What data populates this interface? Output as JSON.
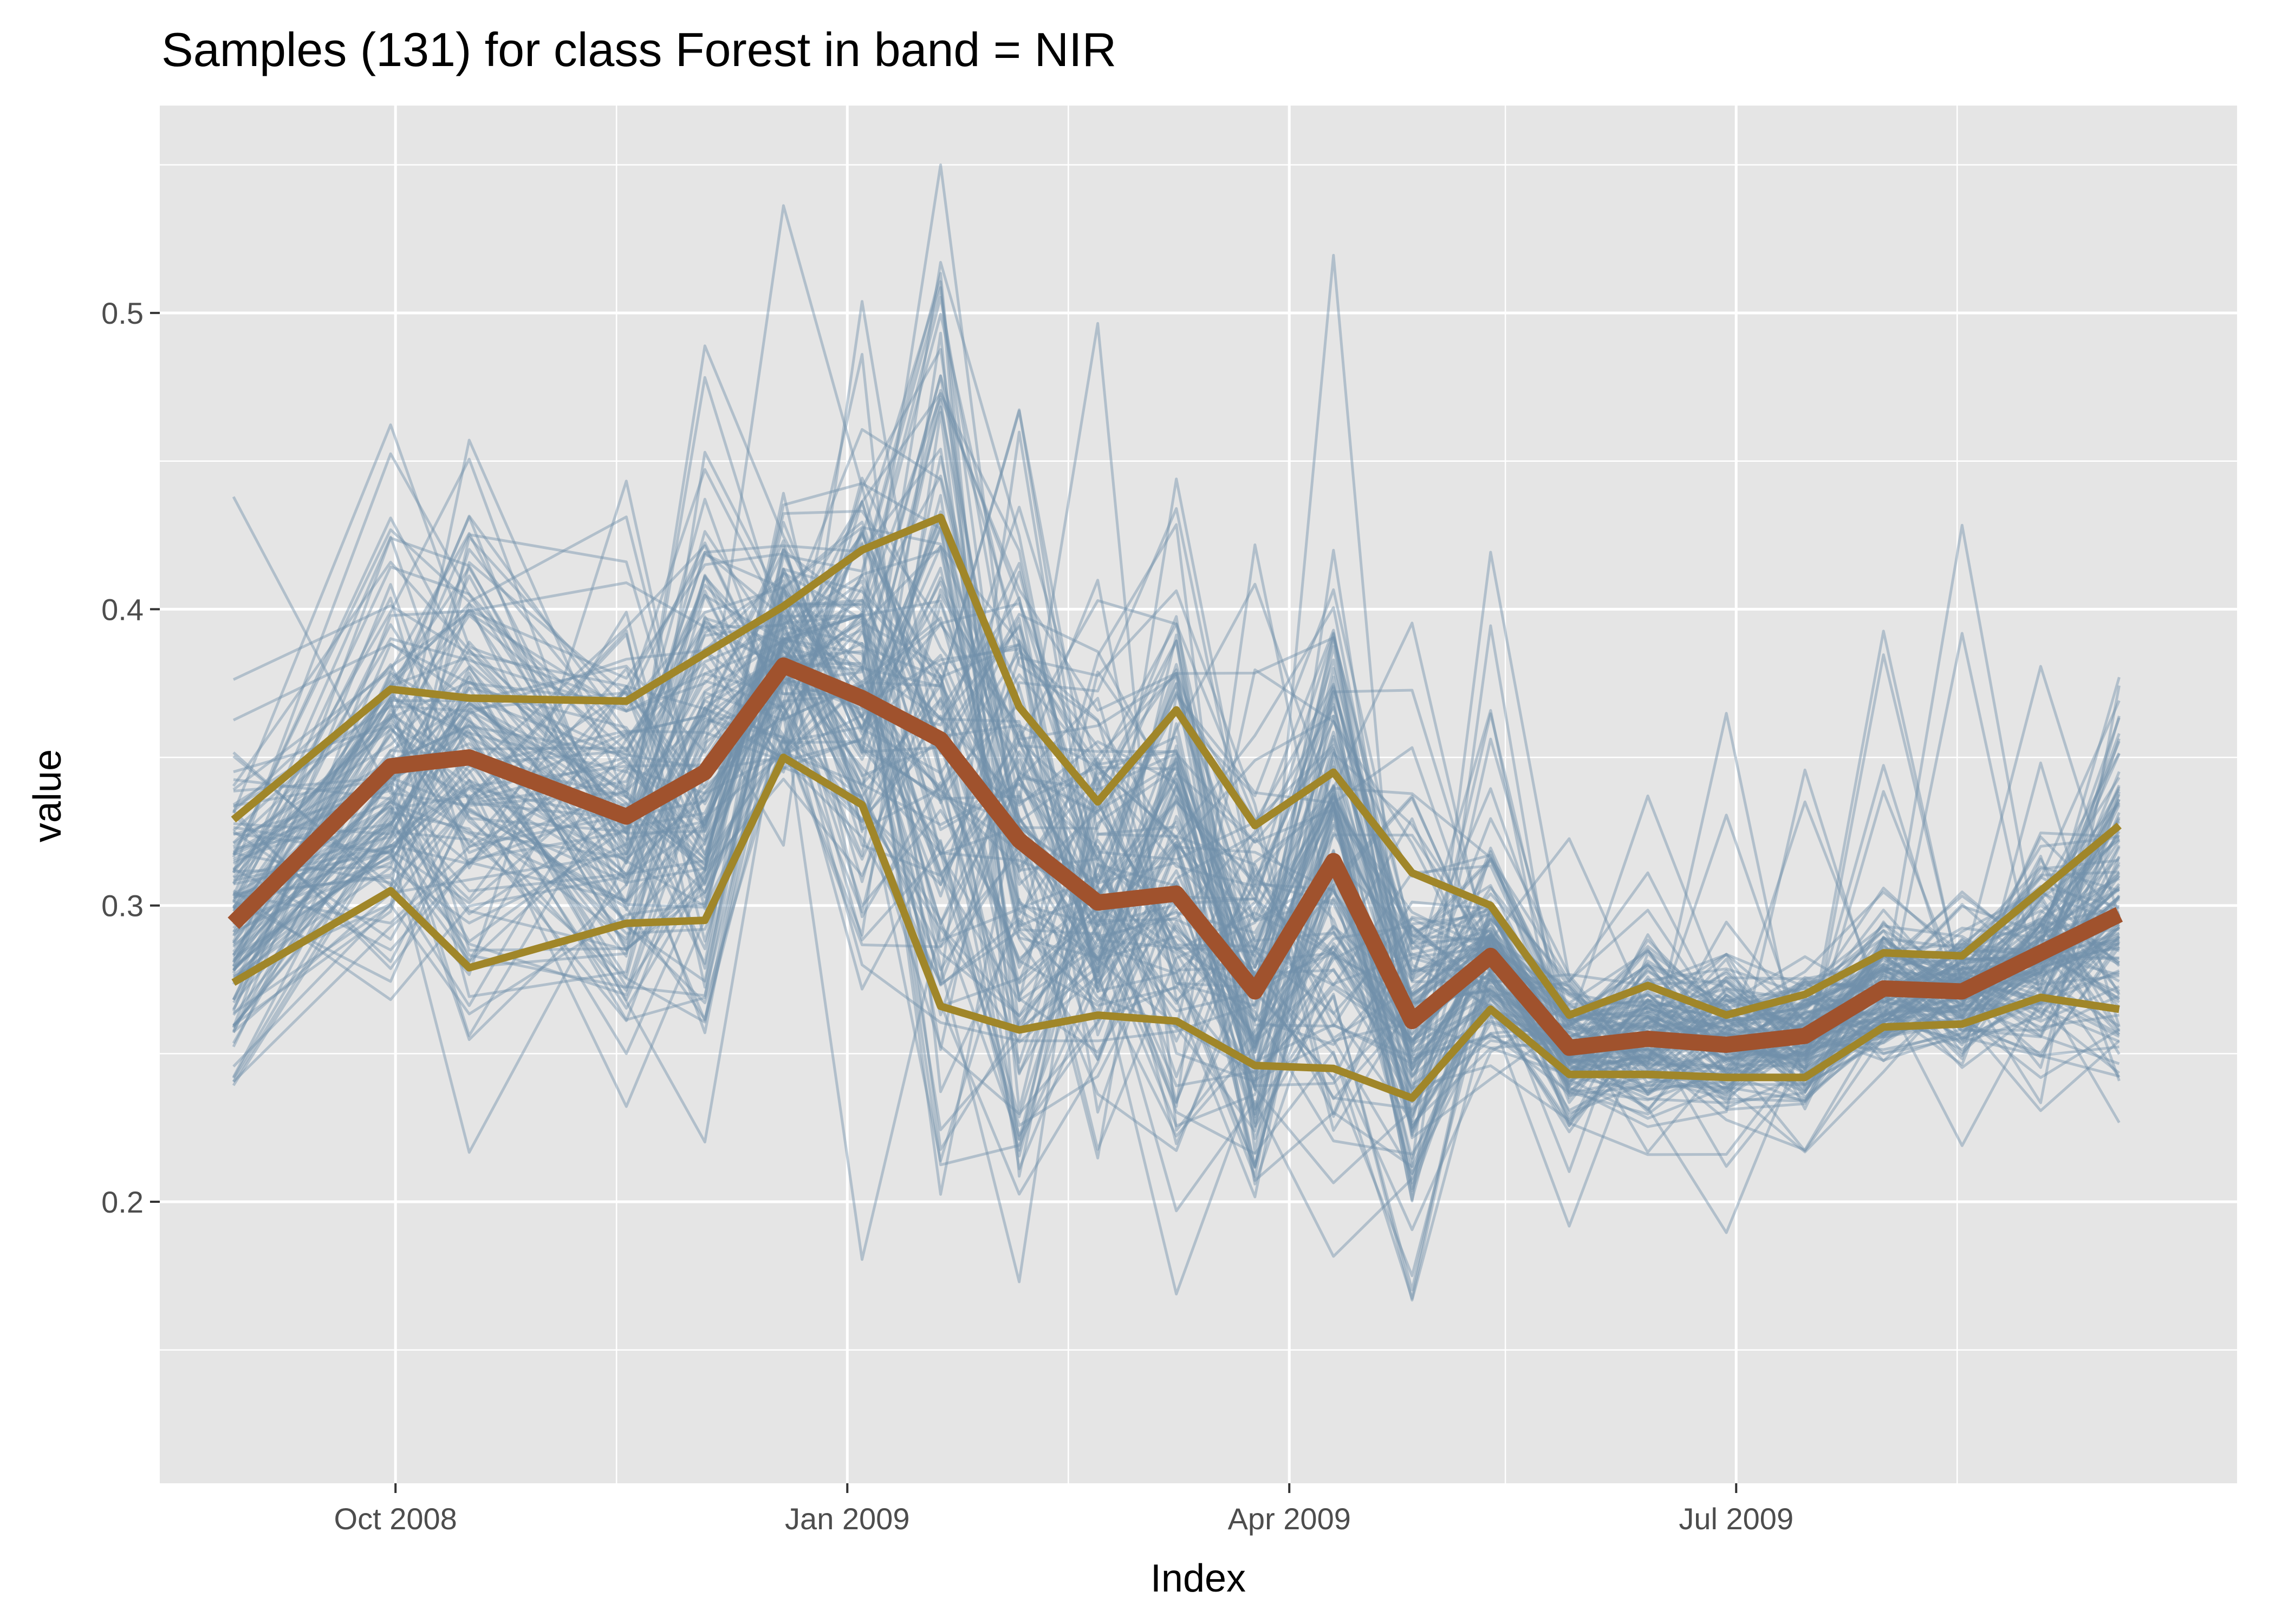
{
  "chart_data": {
    "type": "line",
    "title": "Samples (131) for class Forest in band = NIR",
    "xlabel": "Index",
    "ylabel": "value",
    "x_axis": {
      "kind": "date",
      "range": [
        "2008-08-14",
        "2009-10-11"
      ],
      "ticks": [
        {
          "date": "2008-10-01",
          "label": "Oct 2008"
        },
        {
          "date": "2009-01-01",
          "label": "Jan 2009"
        },
        {
          "date": "2009-04-01",
          "label": "Apr 2009"
        },
        {
          "date": "2009-07-01",
          "label": "Jul 2009"
        }
      ],
      "minor_ticks": [
        "2008-11-15",
        "2009-02-15",
        "2009-05-15",
        "2009-08-15"
      ]
    },
    "y_axis": {
      "range": [
        0.105,
        0.57
      ],
      "ticks": [
        0.2,
        0.3,
        0.4,
        0.5
      ],
      "tick_labels": [
        "0.2",
        "0.3",
        "0.4",
        "0.5"
      ],
      "minor_ticks": [
        0.15,
        0.25,
        0.35,
        0.45,
        0.55
      ]
    },
    "grid": true,
    "legend": "none",
    "dates": [
      "2008-08-29",
      "2008-09-30",
      "2008-10-16",
      "2008-11-17",
      "2008-12-03",
      "2008-12-19",
      "2009-01-04",
      "2009-01-20",
      "2009-02-05",
      "2009-02-21",
      "2009-03-09",
      "2009-03-25",
      "2009-04-10",
      "2009-04-26",
      "2009-05-12",
      "2009-05-28",
      "2009-06-13",
      "2009-06-29",
      "2009-07-15",
      "2009-07-31",
      "2009-08-16",
      "2009-09-01",
      "2009-09-17"
    ],
    "sample_count": 131,
    "series": [
      {
        "role": "median",
        "color": "#a0522d",
        "values": [
          0.294,
          0.347,
          0.35,
          0.33,
          0.345,
          0.381,
          0.37,
          0.356,
          0.322,
          0.301,
          0.304,
          0.271,
          0.315,
          0.261,
          0.283,
          0.252,
          0.255,
          0.253,
          0.256,
          0.272,
          0.271,
          0.284,
          0.297
        ]
      },
      {
        "role": "upper",
        "color": "#a08629",
        "values": [
          0.329,
          0.373,
          0.37,
          0.369,
          0.385,
          0.401,
          0.42,
          0.431,
          0.367,
          0.335,
          0.366,
          0.327,
          0.345,
          0.311,
          0.3,
          0.263,
          0.273,
          0.263,
          0.27,
          0.284,
          0.283,
          0.305,
          0.327
        ]
      },
      {
        "role": "lower",
        "color": "#a08629",
        "values": [
          0.274,
          0.305,
          0.279,
          0.294,
          0.295,
          0.35,
          0.334,
          0.266,
          0.258,
          0.263,
          0.261,
          0.246,
          0.245,
          0.235,
          0.265,
          0.243,
          0.243,
          0.242,
          0.242,
          0.259,
          0.26,
          0.269,
          0.265
        ]
      }
    ],
    "samples_color": "#7090aa",
    "panel_color": "#e5e5e5",
    "grid_color": "#ffffff"
  }
}
